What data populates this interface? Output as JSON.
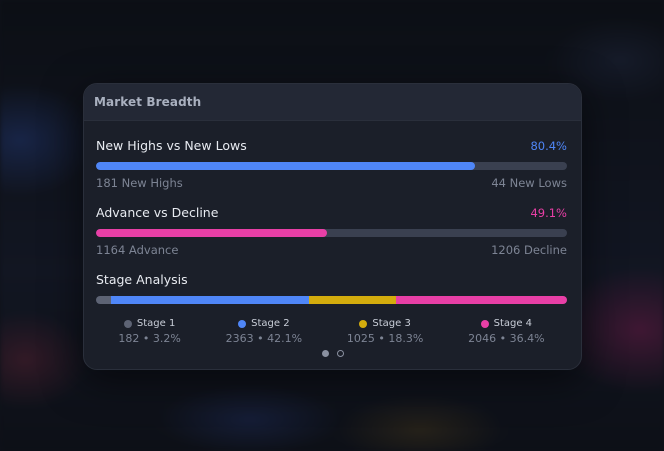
{
  "card": {
    "title": "Market Breadth"
  },
  "highs_lows": {
    "title": "New Highs vs New Lows",
    "percent_label": "80.4%",
    "percent": 80.4,
    "color": "#4f86f7",
    "left_label": "181 New Highs",
    "right_label": "44 New Lows"
  },
  "advance_decline": {
    "title": "Advance vs Decline",
    "percent_label": "49.1%",
    "percent": 49.1,
    "color": "#e83fa6",
    "left_label": "1164 Advance",
    "right_label": "1206 Decline"
  },
  "stage_analysis": {
    "title": "Stage Analysis",
    "stages": [
      {
        "label": "Stage 1",
        "value_label": "182 • 3.2%",
        "percent": 3.2,
        "color": "#5d6374"
      },
      {
        "label": "Stage 2",
        "value_label": "2363 • 42.1%",
        "percent": 42.1,
        "color": "#4f86f7"
      },
      {
        "label": "Stage 3",
        "value_label": "1025 • 18.3%",
        "percent": 18.3,
        "color": "#d4ac0d"
      },
      {
        "label": "Stage 4",
        "value_label": "2046 • 36.4%",
        "percent": 36.4,
        "color": "#e83fa6"
      }
    ]
  },
  "pager": {
    "pages": 2,
    "active": 0
  }
}
